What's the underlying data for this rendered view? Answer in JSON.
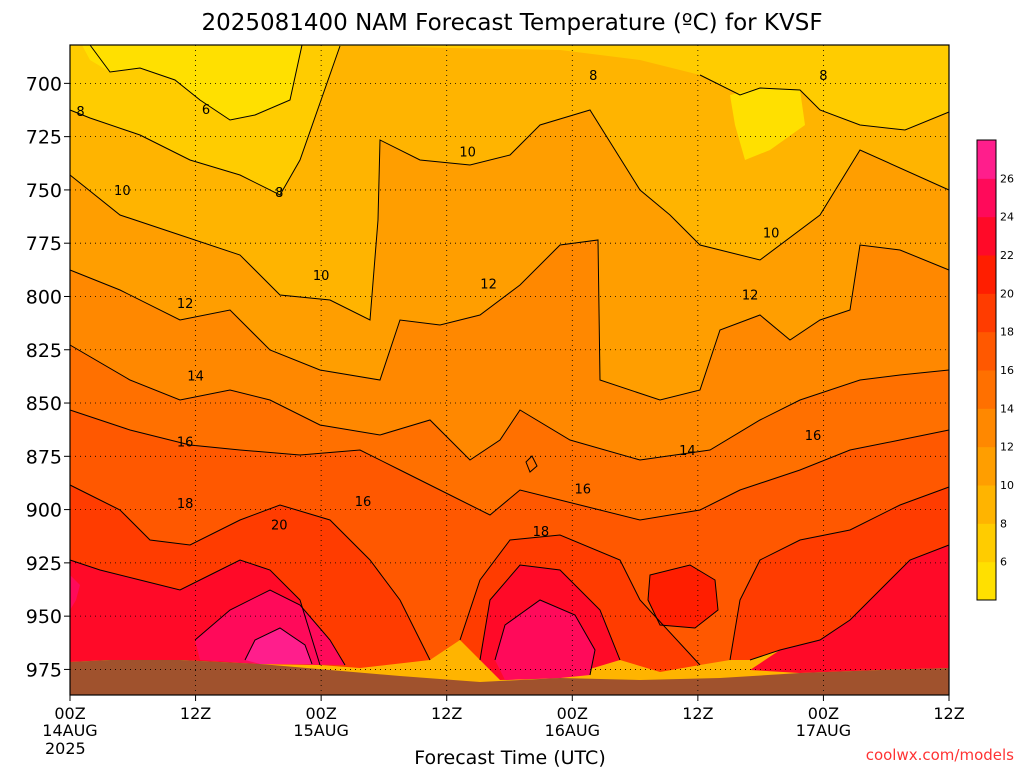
{
  "chart_data": {
    "type": "heatmap",
    "title": "2025081400 NAM Forecast Temperature (ºC) for KVSF",
    "xlabel": "Forecast Time (UTC)",
    "credit": "coolwx.com/models",
    "x_ticks": [
      {
        "hours": 0,
        "label": "00Z",
        "date": "14AUG",
        "year": "2025"
      },
      {
        "hours": 12,
        "label": "12Z",
        "date": "",
        "year": ""
      },
      {
        "hours": 24,
        "label": "00Z",
        "date": "15AUG",
        "year": ""
      },
      {
        "hours": 36,
        "label": "12Z",
        "date": "",
        "year": ""
      },
      {
        "hours": 48,
        "label": "00Z",
        "date": "16AUG",
        "year": ""
      },
      {
        "hours": 60,
        "label": "12Z",
        "date": "",
        "year": ""
      },
      {
        "hours": 72,
        "label": "00Z",
        "date": "17AUG",
        "year": ""
      },
      {
        "hours": 84,
        "label": "12Z",
        "date": "",
        "year": ""
      }
    ],
    "xlim": [
      0,
      84
    ],
    "y_ticks": [
      700,
      725,
      750,
      775,
      800,
      825,
      850,
      875,
      900,
      925,
      950,
      975
    ],
    "ylim": [
      682,
      987
    ],
    "grid": true,
    "colorbar": {
      "ticks": [
        6,
        8,
        10,
        12,
        14,
        16,
        18,
        20,
        22,
        24,
        26
      ],
      "range": [
        4,
        28
      ],
      "colors": [
        "#ffe000",
        "#ffcc00",
        "#ffb400",
        "#ff9e00",
        "#ff8800",
        "#ff7000",
        "#ff5800",
        "#ff3c00",
        "#ff1e00",
        "#ff0a28",
        "#ff0a5a",
        "#ff1e8c"
      ]
    },
    "contour_labels": [
      {
        "hours": 1,
        "p": 713,
        "text": "8"
      },
      {
        "hours": 13,
        "p": 712,
        "text": "6"
      },
      {
        "hours": 20,
        "p": 751,
        "text": "8"
      },
      {
        "hours": 50,
        "p": 696,
        "text": "8"
      },
      {
        "hours": 72,
        "p": 696,
        "text": "8"
      },
      {
        "hours": 5,
        "p": 750,
        "text": "10"
      },
      {
        "hours": 24,
        "p": 790,
        "text": "10"
      },
      {
        "hours": 38,
        "p": 732,
        "text": "10"
      },
      {
        "hours": 67,
        "p": 770,
        "text": "10"
      },
      {
        "hours": 11,
        "p": 803,
        "text": "12"
      },
      {
        "hours": 40,
        "p": 794,
        "text": "12"
      },
      {
        "hours": 65,
        "p": 799,
        "text": "12"
      },
      {
        "hours": 12,
        "p": 837,
        "text": "14"
      },
      {
        "hours": 59,
        "p": 872,
        "text": "14"
      },
      {
        "hours": 11,
        "p": 868,
        "text": "16"
      },
      {
        "hours": 28,
        "p": 896,
        "text": "16"
      },
      {
        "hours": 49,
        "p": 890,
        "text": "16"
      },
      {
        "hours": 71,
        "p": 865,
        "text": "16"
      },
      {
        "hours": 11,
        "p": 897,
        "text": "18"
      },
      {
        "hours": 45,
        "p": 910,
        "text": "18"
      },
      {
        "hours": 20,
        "p": 907,
        "text": "20"
      }
    ]
  }
}
